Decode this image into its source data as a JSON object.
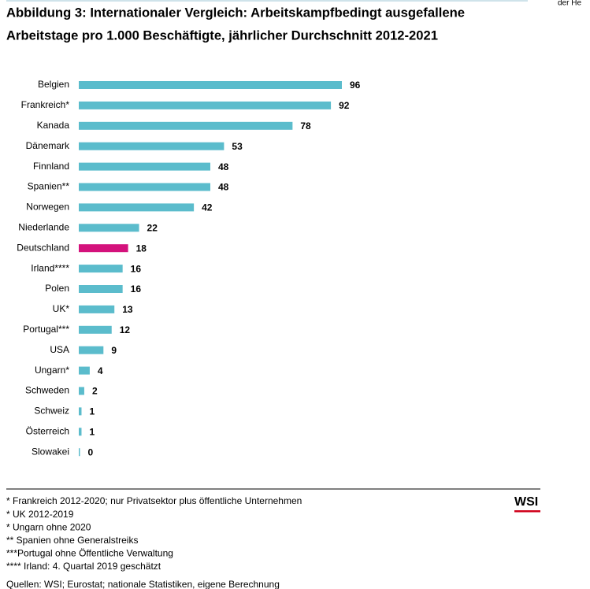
{
  "corner_text": "der He",
  "chart_data": {
    "type": "barh",
    "title": [
      "Abbildung 3: Internationaler Vergleich: Arbeitskampfbedingt ausgefallene",
      "Arbeitstage pro 1.000 Beschäftigte, jährlicher Durchschnitt 2012-2021"
    ],
    "categories": [
      "Belgien",
      "Frankreich*",
      "Kanada",
      "Dänemark",
      "Finnland",
      "Spanien**",
      "Norwegen",
      "Niederlande",
      "Deutschland",
      "Irland****",
      "Polen",
      "UK*",
      "Portugal***",
      "USA",
      "Ungarn*",
      "Schweden",
      "Schweiz",
      "Österreich",
      "Slowakei"
    ],
    "values": [
      96,
      92,
      78,
      53,
      48,
      48,
      42,
      22,
      18,
      16,
      16,
      13,
      12,
      9,
      4,
      2,
      1,
      1,
      0
    ],
    "colors": [
      "#5bbccc",
      "#5bbccc",
      "#5bbccc",
      "#5bbccc",
      "#5bbccc",
      "#5bbccc",
      "#5bbccc",
      "#5bbccc",
      "#d4127c",
      "#5bbccc",
      "#5bbccc",
      "#5bbccc",
      "#5bbccc",
      "#5bbccc",
      "#5bbccc",
      "#5bbccc",
      "#5bbccc",
      "#5bbccc",
      "#5bbccc"
    ],
    "notes": [
      "* Frankreich 2012-2020; nur Privatsektor plus öffentliche Unternehmen",
      "* UK 2012-2019",
      "* Ungarn ohne 2020",
      "** Spanien ohne Generalstreiks",
      "***Portugal ohne Öffentliche Verwaltung",
      "**** Irland: 4. Quartal 2019 geschätzt"
    ],
    "source": "Quellen: WSI; Eurostat; nationale Statistiken, eigene Berechnung",
    "logo": "WSI"
  }
}
